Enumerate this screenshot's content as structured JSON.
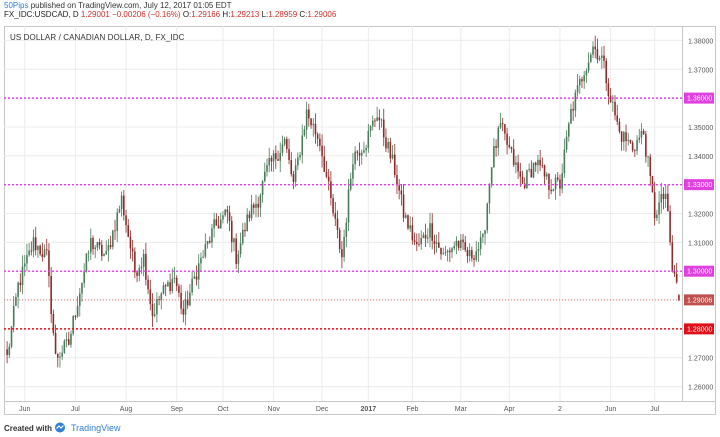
{
  "header": {
    "author": "50Pips",
    "published": "published on TradingView.com, July 12, 2017 01:05 EDT",
    "symbol": "FX_IDC:USDCAD, D",
    "last_value": "1.29001",
    "change": "−0.00206 (−0.16%)",
    "o_label": "O:",
    "o_value": "1.29166",
    "h_label": "H:",
    "h_value": "1.29213",
    "l_label": "L:",
    "l_value": "1.28959",
    "c_label": "C:",
    "c_value": "1.29006"
  },
  "footer": {
    "created_with": "Created with",
    "brand": "TradingView"
  },
  "chart_data": {
    "type": "candlestick",
    "title": "US DOLLAR / CANADIAN DOLLAR, D, FX_IDC",
    "ylim": [
      1.255,
      1.385
    ],
    "y_ticks": [
      "1.38000",
      "1.37000",
      "1.36000",
      "1.35000",
      "1.34000",
      "1.33000",
      "1.32000",
      "1.31000",
      "1.30000",
      "1.29000",
      "1.28000",
      "1.27000",
      "1.26000"
    ],
    "y_tick_values": [
      1.38,
      1.37,
      1.36,
      1.35,
      1.34,
      1.33,
      1.32,
      1.31,
      1.3,
      1.29,
      1.28,
      1.27,
      1.26
    ],
    "x_ticks": [
      "Jun",
      "Jul",
      "Aug",
      "Sep",
      "Oct",
      "Nov",
      "Dec",
      "2017",
      "Feb",
      "Mar",
      "Apr",
      "2",
      "Jun",
      "Jul"
    ],
    "x_tick_bold": [
      false,
      false,
      false,
      false,
      false,
      false,
      false,
      true,
      false,
      false,
      false,
      false,
      false,
      false
    ],
    "x_tick_index": [
      8,
      31,
      54,
      77,
      98,
      121,
      143,
      164,
      184,
      206,
      228,
      251,
      274,
      294
    ],
    "bar_count": 306,
    "horizontal_levels": [
      {
        "value": 1.36,
        "label": "1.36000",
        "color": "#e040e0",
        "style": "dotted"
      },
      {
        "value": 1.33,
        "label": "1.33000",
        "color": "#e040e0",
        "style": "dotted"
      },
      {
        "value": 1.3,
        "label": "1.30000",
        "color": "#e040e0",
        "style": "dotted"
      },
      {
        "value": 1.29006,
        "label": "1.29006",
        "color": "#c0504d",
        "style": "dotted-thin"
      },
      {
        "value": 1.28,
        "label": "1.28000",
        "color": "#e0101a",
        "style": "dotted"
      }
    ],
    "keypoints": [
      [
        0,
        1.27
      ],
      [
        5,
        1.295
      ],
      [
        12,
        1.31
      ],
      [
        18,
        1.305
      ],
      [
        22,
        1.27
      ],
      [
        28,
        1.275
      ],
      [
        32,
        1.29
      ],
      [
        38,
        1.31
      ],
      [
        45,
        1.305
      ],
      [
        52,
        1.325
      ],
      [
        58,
        1.3
      ],
      [
        62,
        1.305
      ],
      [
        66,
        1.285
      ],
      [
        70,
        1.292
      ],
      [
        76,
        1.298
      ],
      [
        80,
        1.285
      ],
      [
        86,
        1.3
      ],
      [
        94,
        1.315
      ],
      [
        100,
        1.32
      ],
      [
        104,
        1.305
      ],
      [
        110,
        1.32
      ],
      [
        114,
        1.325
      ],
      [
        118,
        1.335
      ],
      [
        126,
        1.345
      ],
      [
        130,
        1.33
      ],
      [
        136,
        1.355
      ],
      [
        142,
        1.345
      ],
      [
        148,
        1.32
      ],
      [
        152,
        1.305
      ],
      [
        157,
        1.34
      ],
      [
        163,
        1.345
      ],
      [
        168,
        1.355
      ],
      [
        172,
        1.345
      ],
      [
        176,
        1.335
      ],
      [
        180,
        1.32
      ],
      [
        186,
        1.308
      ],
      [
        192,
        1.315
      ],
      [
        198,
        1.305
      ],
      [
        204,
        1.31
      ],
      [
        210,
        1.305
      ],
      [
        216,
        1.31
      ],
      [
        220,
        1.338
      ],
      [
        224,
        1.35
      ],
      [
        229,
        1.34
      ],
      [
        234,
        1.33
      ],
      [
        240,
        1.338
      ],
      [
        246,
        1.33
      ],
      [
        251,
        1.33
      ],
      [
        256,
        1.355
      ],
      [
        262,
        1.37
      ],
      [
        266,
        1.378
      ],
      [
        270,
        1.374
      ],
      [
        274,
        1.36
      ],
      [
        278,
        1.348
      ],
      [
        284,
        1.343
      ],
      [
        289,
        1.348
      ],
      [
        294,
        1.32
      ],
      [
        299,
        1.327
      ],
      [
        302,
        1.3
      ],
      [
        306,
        1.292
      ]
    ],
    "last_bar": {
      "open": 1.29166,
      "high": 1.29213,
      "low": 1.28959,
      "close": 1.29006
    },
    "colors": {
      "up": "#4a7a5a",
      "down": "#8b2a2a",
      "grid": "#ececec",
      "axis_text": "#555555"
    }
  }
}
